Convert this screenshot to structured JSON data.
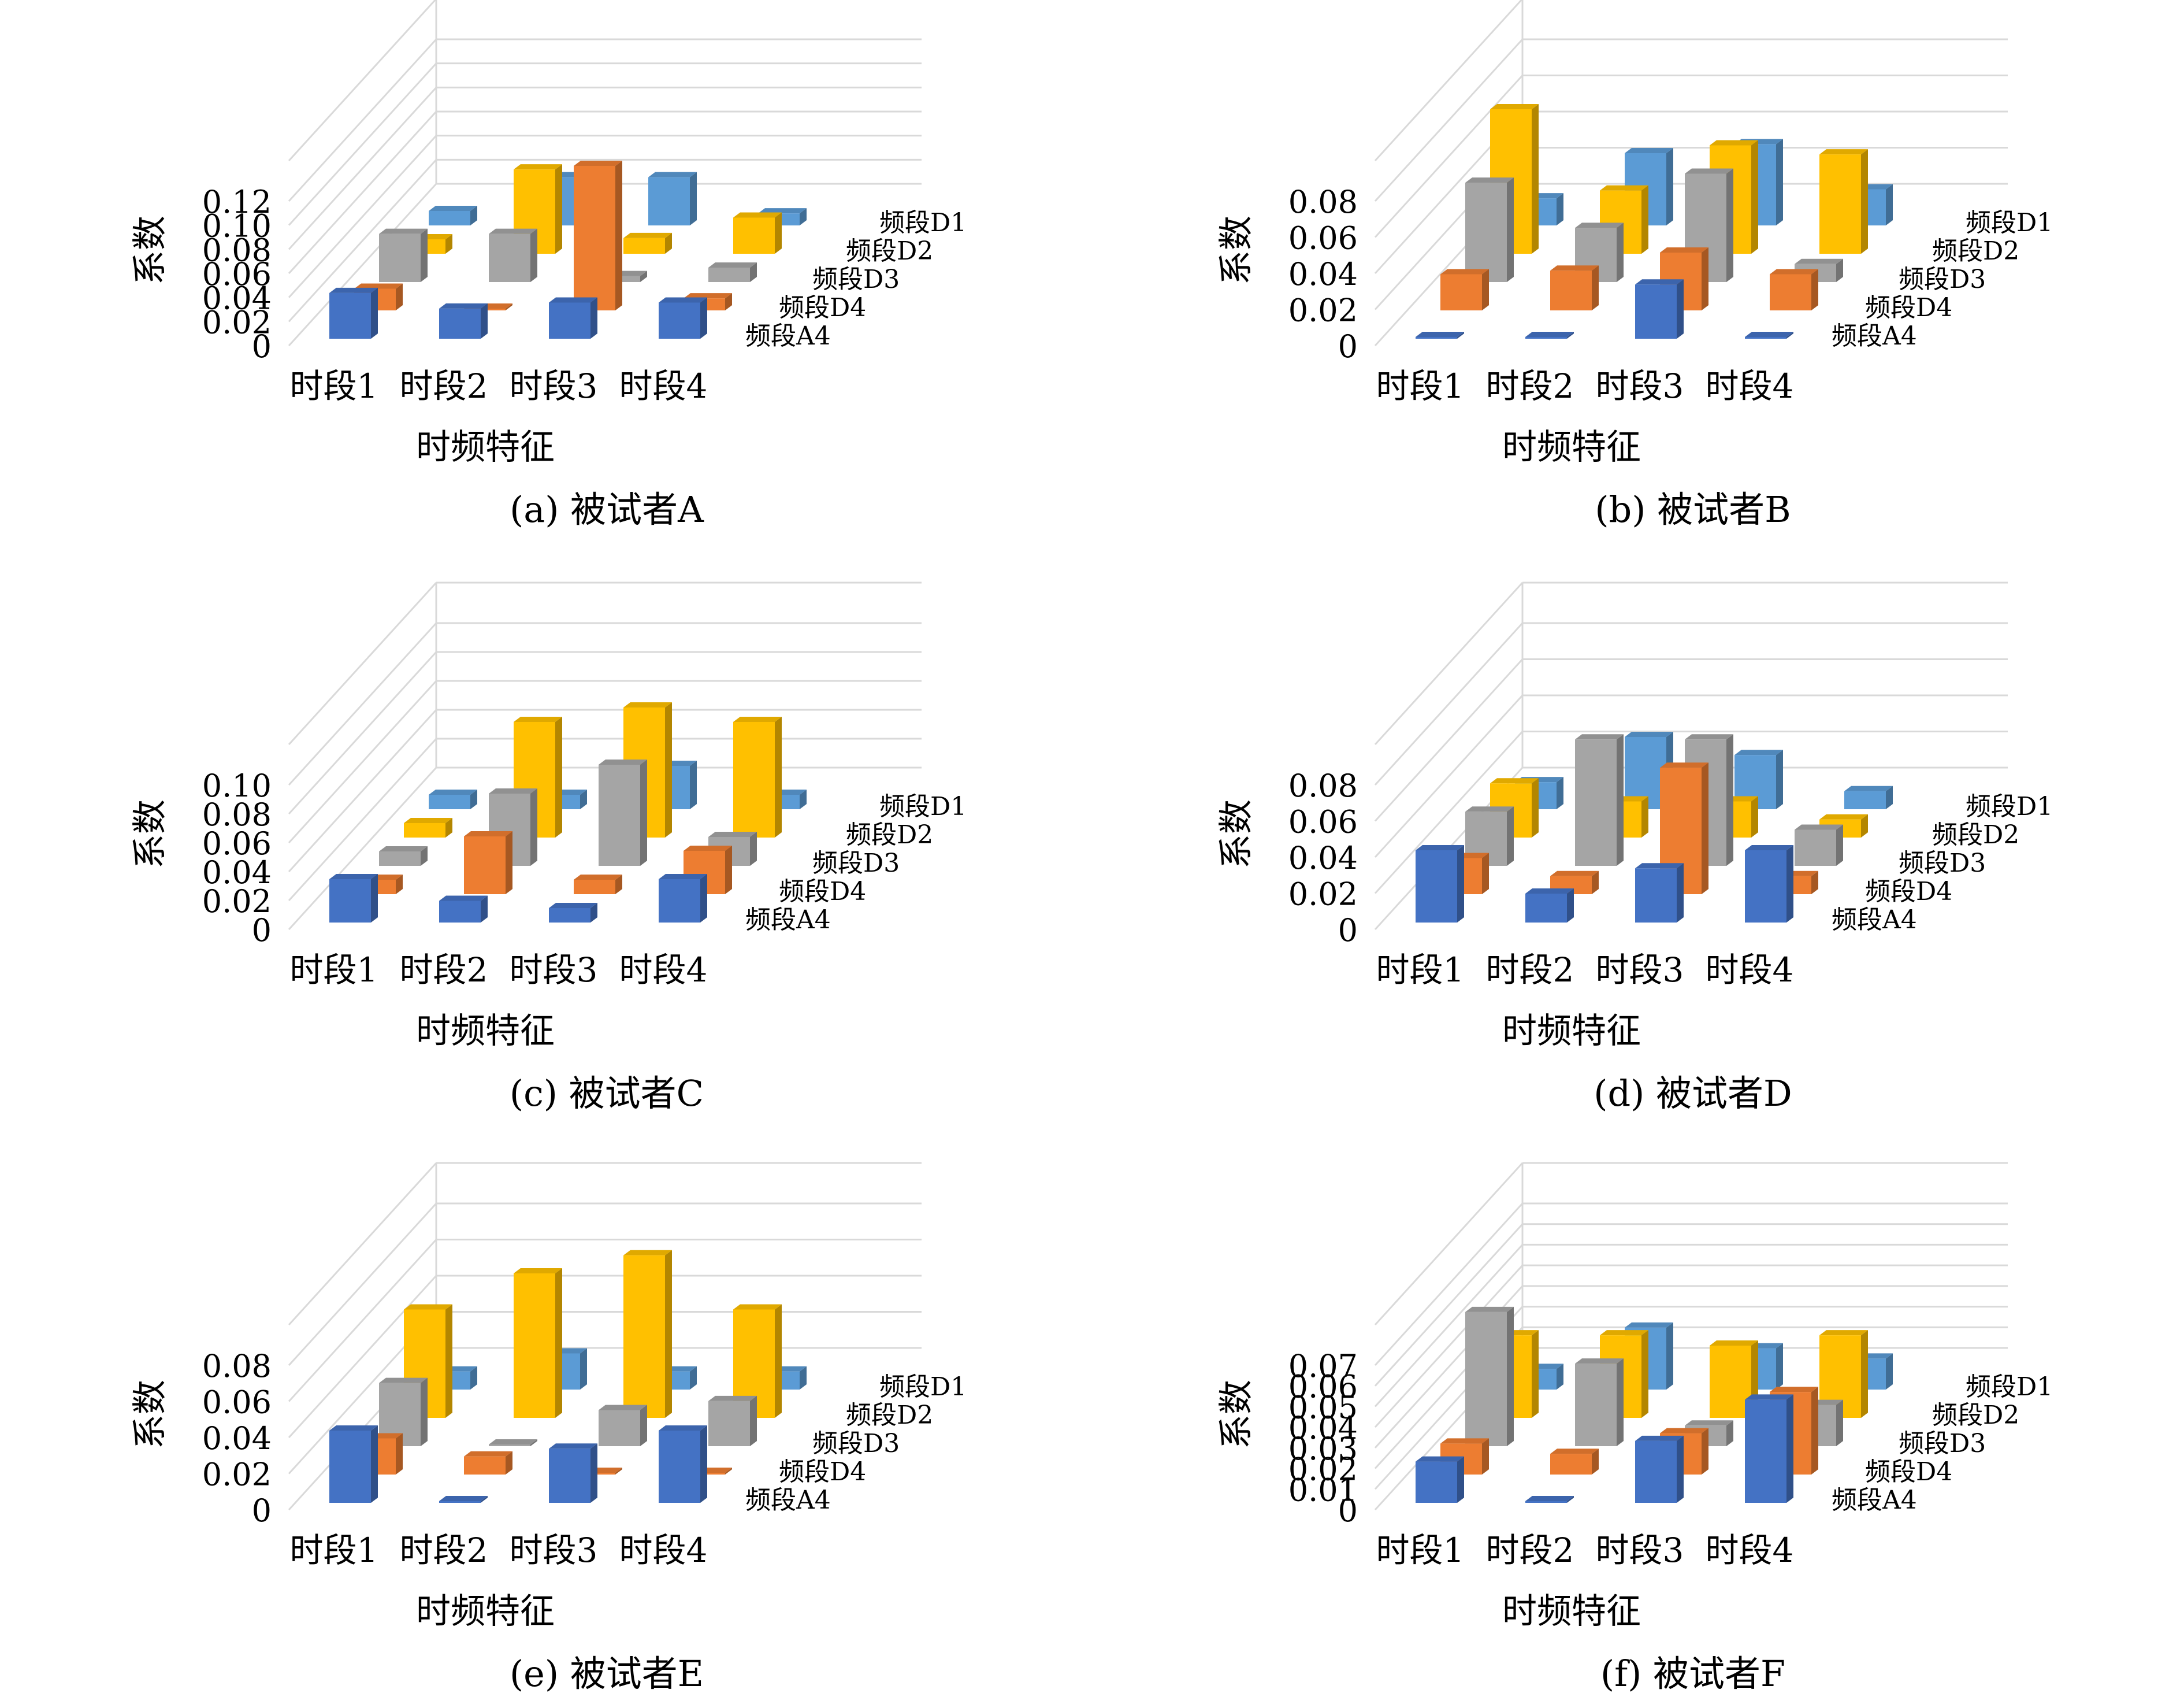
{
  "chart_data": [
    {
      "type": "bar",
      "caption": "(a) 被试者A",
      "xlabel": "时频特征",
      "ylabel": "系数",
      "categories": [
        "时段1",
        "时段2",
        "时段3",
        "时段4"
      ],
      "yticks": [
        "0",
        "0.02",
        "0.04",
        "0.06",
        "0.08",
        "0.10",
        "0.12"
      ],
      "ylim": [
        0,
        0.12
      ],
      "series": [
        {
          "name": "频段A4",
          "values": [
            0.038,
            0.025,
            0.03,
            0.03
          ]
        },
        {
          "name": "频段D4",
          "values": [
            0.018,
            0.001,
            0.12,
            0.01
          ]
        },
        {
          "name": "频段D3",
          "values": [
            0.04,
            0.04,
            0.005,
            0.012
          ]
        },
        {
          "name": "频段D2",
          "values": [
            0.012,
            0.07,
            0.013,
            0.03
          ]
        },
        {
          "name": "频段D1",
          "values": [
            0.012,
            0.04,
            0.04,
            0.01
          ]
        }
      ]
    },
    {
      "type": "bar",
      "caption": "(b) 被试者B",
      "xlabel": "时频特征",
      "ylabel": "系数",
      "categories": [
        "时段1",
        "时段2",
        "时段3",
        "时段4"
      ],
      "yticks": [
        "0",
        "0.02",
        "0.04",
        "0.06",
        "0.08"
      ],
      "ylim": [
        0,
        0.08
      ],
      "series": [
        {
          "name": "频段A4",
          "values": [
            0.0,
            0.0,
            0.03,
            0.0
          ]
        },
        {
          "name": "频段D4",
          "values": [
            0.02,
            0.022,
            0.032,
            0.02
          ]
        },
        {
          "name": "频段D3",
          "values": [
            0.055,
            0.03,
            0.06,
            0.01
          ]
        },
        {
          "name": "频段D2",
          "values": [
            0.08,
            0.035,
            0.06,
            0.055
          ]
        },
        {
          "name": "频段D1",
          "values": [
            0.015,
            0.04,
            0.045,
            0.02
          ]
        }
      ]
    },
    {
      "type": "bar",
      "caption": "(c) 被试者C",
      "xlabel": "时频特征",
      "ylabel": "系数",
      "categories": [
        "时段1",
        "时段2",
        "时段3",
        "时段4"
      ],
      "yticks": [
        "0",
        "0.02",
        "0.04",
        "0.06",
        "0.08",
        "0.10"
      ],
      "ylim": [
        0,
        0.1
      ],
      "series": [
        {
          "name": "频段A4",
          "values": [
            0.03,
            0.015,
            0.01,
            0.03
          ]
        },
        {
          "name": "频段D4",
          "values": [
            0.01,
            0.04,
            0.01,
            0.03
          ]
        },
        {
          "name": "频段D3",
          "values": [
            0.01,
            0.05,
            0.07,
            0.02
          ]
        },
        {
          "name": "频段D2",
          "values": [
            0.01,
            0.08,
            0.09,
            0.08
          ]
        },
        {
          "name": "频段D1",
          "values": [
            0.01,
            0.01,
            0.03,
            0.01
          ]
        }
      ]
    },
    {
      "type": "bar",
      "caption": "(d) 被试者D",
      "xlabel": "时频特征",
      "ylabel": "系数",
      "categories": [
        "时段1",
        "时段2",
        "时段3",
        "时段4"
      ],
      "yticks": [
        "0",
        "0.02",
        "0.04",
        "0.06",
        "0.08"
      ],
      "ylim": [
        0,
        0.08
      ],
      "series": [
        {
          "name": "频段A4",
          "values": [
            0.04,
            0.016,
            0.03,
            0.04
          ]
        },
        {
          "name": "频段D4",
          "values": [
            0.02,
            0.01,
            0.07,
            0.01
          ]
        },
        {
          "name": "频段D3",
          "values": [
            0.03,
            0.07,
            0.07,
            0.02
          ]
        },
        {
          "name": "频段D2",
          "values": [
            0.03,
            0.02,
            0.02,
            0.01
          ]
        },
        {
          "name": "频段D1",
          "values": [
            0.015,
            0.04,
            0.03,
            0.01
          ]
        }
      ]
    },
    {
      "type": "bar",
      "caption": "(e) 被试者E",
      "xlabel": "时频特征",
      "ylabel": "系数",
      "categories": [
        "时段1",
        "时段2",
        "时段3",
        "时段4"
      ],
      "yticks": [
        "0",
        "0.02",
        "0.04",
        "0.06",
        "0.08"
      ],
      "ylim": [
        0,
        0.08
      ],
      "series": [
        {
          "name": "频段A4",
          "values": [
            0.04,
            0.0,
            0.03,
            0.04
          ]
        },
        {
          "name": "频段D4",
          "values": [
            0.02,
            0.01,
            0.0,
            0.0
          ]
        },
        {
          "name": "频段D3",
          "values": [
            0.035,
            0.0,
            0.02,
            0.025
          ]
        },
        {
          "name": "频段D2",
          "values": [
            0.06,
            0.08,
            0.09,
            0.06
          ]
        },
        {
          "name": "频段D1",
          "values": [
            0.01,
            0.02,
            0.01,
            0.01
          ]
        }
      ]
    },
    {
      "type": "bar",
      "caption": "(f) 被试者F",
      "xlabel": "时频特征",
      "ylabel": "系数",
      "categories": [
        "时段1",
        "时段2",
        "时段3",
        "时段4"
      ],
      "yticks": [
        "0",
        "0.01",
        "0.02",
        "0.03",
        "0.04",
        "0.05",
        "0.06",
        "0.07"
      ],
      "ylim": [
        0,
        0.07
      ],
      "series": [
        {
          "name": "频段A4",
          "values": [
            0.02,
            0.0,
            0.03,
            0.05
          ]
        },
        {
          "name": "频段D4",
          "values": [
            0.015,
            0.01,
            0.02,
            0.04
          ]
        },
        {
          "name": "频段D3",
          "values": [
            0.065,
            0.04,
            0.01,
            0.02
          ]
        },
        {
          "name": "频段D2",
          "values": [
            0.04,
            0.04,
            0.035,
            0.04
          ]
        },
        {
          "name": "频段D1",
          "values": [
            0.01,
            0.03,
            0.02,
            0.015
          ]
        }
      ]
    }
  ],
  "colors": {
    "频段A4": "#4472c4",
    "频段D4": "#ed7d31",
    "频段D3": "#a5a5a5",
    "频段D2": "#ffc000",
    "频段D1": "#5b9bd5"
  }
}
